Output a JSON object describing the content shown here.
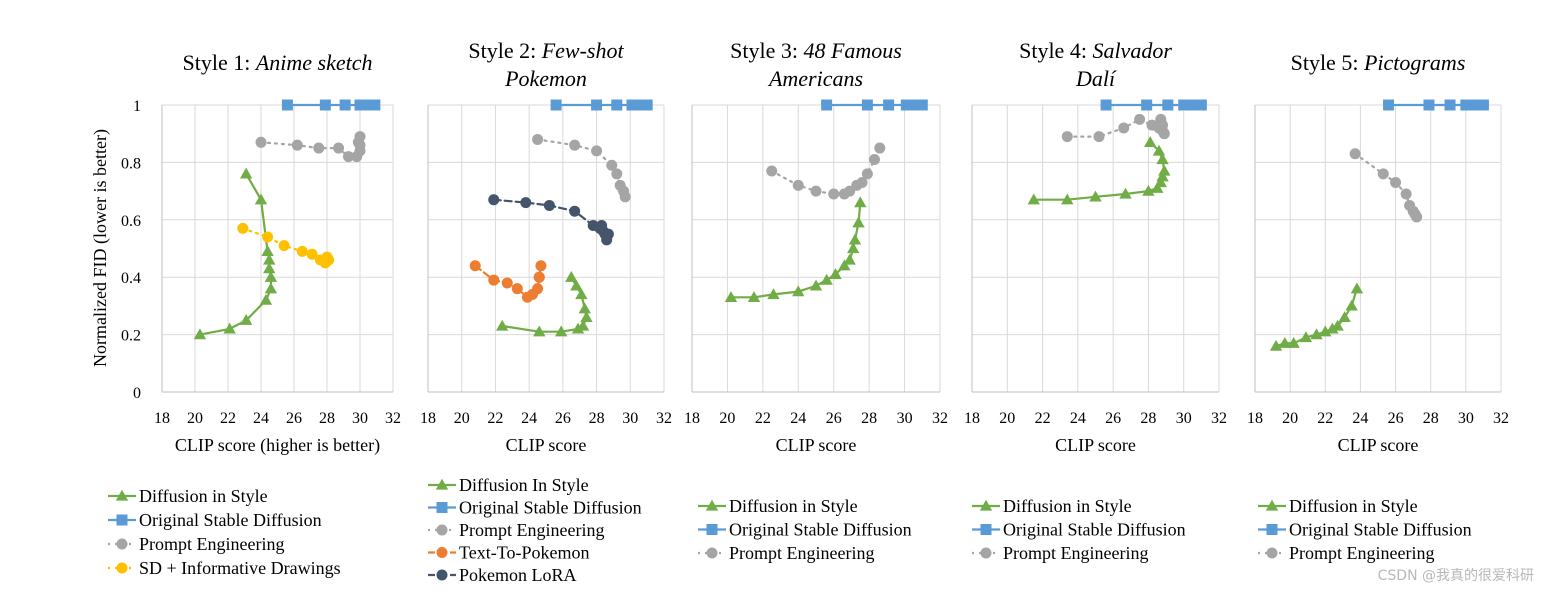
{
  "watermark": "CSDN @我真的很爱科研",
  "y_axis_label": "Normalized FID (lower is better)",
  "chart_data": [
    {
      "type": "line",
      "title_plain": "Style 1: ",
      "title_italic": "Anime sketch",
      "xlabel": "CLIP score (higher is better)",
      "xlim": [
        18,
        32
      ],
      "ylim": [
        0,
        1
      ],
      "xticks": [
        18,
        20,
        22,
        24,
        26,
        28,
        30,
        32
      ],
      "yticks": [
        0,
        0.2,
        0.4,
        0.6,
        0.8,
        1
      ],
      "ytick_labels": [
        "0",
        "0.2",
        "0.4",
        "0.6",
        "0.8",
        "1"
      ],
      "grid": true,
      "legend_position": "bottom",
      "series": [
        {
          "name": "Diffusion in Style",
          "color": "#70ad47",
          "marker": "triangle",
          "dash": "solid",
          "x": [
            20.3,
            22.1,
            23.1,
            24.3,
            24.6,
            24.6,
            24.5,
            24.5,
            24.4,
            24.0,
            23.1
          ],
          "y": [
            0.2,
            0.22,
            0.25,
            0.32,
            0.36,
            0.4,
            0.43,
            0.46,
            0.49,
            0.67,
            0.76
          ]
        },
        {
          "name": "Original Stable Diffusion",
          "color": "#5b9bd5",
          "marker": "square",
          "dash": "solid",
          "x": [
            25.6,
            27.9,
            29.1,
            30.0,
            30.3,
            30.6,
            30.9
          ],
          "y": [
            1,
            1,
            1,
            1,
            1,
            1,
            1
          ]
        },
        {
          "name": "Prompt Engineering",
          "color": "#a5a5a5",
          "marker": "circle",
          "dash": "dot",
          "x": [
            24.0,
            26.2,
            27.5,
            28.7,
            29.3,
            29.8,
            30.0,
            30.0,
            29.9,
            30.0
          ],
          "y": [
            0.87,
            0.86,
            0.85,
            0.85,
            0.82,
            0.82,
            0.84,
            0.86,
            0.87,
            0.89
          ]
        },
        {
          "name": "SD + Informative Drawings",
          "color": "#ffc000",
          "marker": "circle",
          "dash": "dot",
          "x": [
            22.9,
            24.4,
            25.4,
            26.5,
            27.1,
            27.6,
            27.9,
            28.1,
            28.0
          ],
          "y": [
            0.57,
            0.54,
            0.51,
            0.49,
            0.48,
            0.46,
            0.45,
            0.46,
            0.47
          ]
        }
      ]
    },
    {
      "type": "line",
      "title_plain": "Style 2: ",
      "title_italic": "Few-shot",
      "title_line2": "Pokemon",
      "xlabel": "CLIP score",
      "xlim": [
        18,
        32
      ],
      "ylim": [
        0,
        1
      ],
      "xticks": [
        18,
        20,
        22,
        24,
        26,
        28,
        30,
        32
      ],
      "yticks": [
        0,
        0.2,
        0.4,
        0.6,
        0.8,
        1
      ],
      "grid": true,
      "legend_position": "bottom",
      "series": [
        {
          "name": "Diffusion In Style",
          "color": "#70ad47",
          "marker": "triangle",
          "dash": "solid",
          "x": [
            22.4,
            24.6,
            25.9,
            26.9,
            27.2,
            27.4,
            27.3,
            27.1,
            26.8,
            26.5
          ],
          "y": [
            0.23,
            0.21,
            0.21,
            0.22,
            0.23,
            0.26,
            0.29,
            0.34,
            0.37,
            0.4
          ]
        },
        {
          "name": "Original Stable Diffusion",
          "color": "#5b9bd5",
          "marker": "square",
          "dash": "solid",
          "x": [
            25.6,
            28.0,
            29.2,
            30.1,
            30.4,
            30.7,
            31.0
          ],
          "y": [
            1,
            1,
            1,
            1,
            1,
            1,
            1
          ]
        },
        {
          "name": "Prompt Engineering",
          "color": "#a5a5a5",
          "marker": "circle",
          "dash": "dot",
          "x": [
            24.5,
            26.7,
            28.0,
            28.9,
            29.2,
            29.4,
            29.6,
            29.7
          ],
          "y": [
            0.88,
            0.86,
            0.84,
            0.79,
            0.76,
            0.72,
            0.7,
            0.68
          ]
        },
        {
          "name": "Text-To-Pokemon",
          "color": "#ed7d31",
          "marker": "circle",
          "dash": "dash",
          "x": [
            20.8,
            21.9,
            22.7,
            23.3,
            23.9,
            24.2,
            24.5,
            24.6,
            24.7,
            24.6
          ],
          "y": [
            0.44,
            0.39,
            0.38,
            0.36,
            0.33,
            0.34,
            0.36,
            0.4,
            0.44,
            0.4
          ]
        },
        {
          "name": "Pokemon LoRA",
          "color": "#44546a",
          "marker": "circle",
          "dash": "dash",
          "x": [
            21.9,
            23.8,
            25.2,
            26.7,
            27.8,
            28.2,
            28.5,
            28.6,
            28.7,
            28.4,
            28.3
          ],
          "y": [
            0.67,
            0.66,
            0.65,
            0.63,
            0.58,
            0.57,
            0.55,
            0.53,
            0.55,
            0.56,
            0.58
          ]
        }
      ]
    },
    {
      "type": "line",
      "title_plain": "Style 3: ",
      "title_italic": "48 Famous",
      "title_line2": "Americans",
      "xlabel": "CLIP score",
      "xlim": [
        18,
        32
      ],
      "ylim": [
        0,
        1
      ],
      "xticks": [
        18,
        20,
        22,
        24,
        26,
        28,
        30,
        32
      ],
      "yticks": [
        0,
        0.2,
        0.4,
        0.6,
        0.8,
        1
      ],
      "grid": true,
      "legend_position": "bottom",
      "series": [
        {
          "name": "Diffusion in Style",
          "color": "#70ad47",
          "marker": "triangle",
          "dash": "solid",
          "x": [
            20.2,
            21.5,
            22.6,
            24.0,
            25.0,
            25.6,
            26.1,
            26.6,
            26.9,
            27.1,
            27.2,
            27.4,
            27.5
          ],
          "y": [
            0.33,
            0.33,
            0.34,
            0.35,
            0.37,
            0.39,
            0.41,
            0.44,
            0.46,
            0.5,
            0.53,
            0.59,
            0.66
          ]
        },
        {
          "name": "Original Stable Diffusion",
          "color": "#5b9bd5",
          "marker": "square",
          "dash": "solid",
          "x": [
            25.6,
            27.9,
            29.1,
            30.1,
            30.5,
            30.8,
            31.0
          ],
          "y": [
            1,
            1,
            1,
            1,
            1,
            1,
            1
          ]
        },
        {
          "name": "Prompt Engineering",
          "color": "#a5a5a5",
          "marker": "circle",
          "dash": "dot",
          "x": [
            22.5,
            24.0,
            25.0,
            26.0,
            26.6,
            26.9,
            27.3,
            27.6,
            27.9,
            28.3,
            28.6
          ],
          "y": [
            0.77,
            0.72,
            0.7,
            0.69,
            0.69,
            0.7,
            0.72,
            0.73,
            0.76,
            0.81,
            0.85
          ]
        }
      ]
    },
    {
      "type": "line",
      "title_plain": "Style 4: ",
      "title_italic": "Salvador",
      "title_line2": "Dalí",
      "xlabel": "CLIP score",
      "xlim": [
        18,
        32
      ],
      "ylim": [
        0,
        1
      ],
      "xticks": [
        18,
        20,
        22,
        24,
        26,
        28,
        30,
        32
      ],
      "yticks": [
        0,
        0.2,
        0.4,
        0.6,
        0.8,
        1
      ],
      "grid": true,
      "legend_position": "bottom",
      "series": [
        {
          "name": "Diffusion in Style",
          "color": "#70ad47",
          "marker": "triangle",
          "dash": "solid",
          "x": [
            21.5,
            23.4,
            25.0,
            26.7,
            28.0,
            28.5,
            28.7,
            28.8,
            28.9,
            28.8,
            28.6,
            28.1
          ],
          "y": [
            0.67,
            0.67,
            0.68,
            0.69,
            0.7,
            0.71,
            0.73,
            0.75,
            0.77,
            0.81,
            0.84,
            0.87
          ]
        },
        {
          "name": "Original Stable Diffusion",
          "color": "#5b9bd5",
          "marker": "square",
          "dash": "solid",
          "x": [
            25.6,
            27.9,
            29.1,
            30.0,
            30.4,
            30.7,
            31.0
          ],
          "y": [
            1,
            1,
            1,
            1,
            1,
            1,
            1
          ]
        },
        {
          "name": "Prompt Engineering",
          "color": "#a5a5a5",
          "marker": "circle",
          "dash": "dot",
          "x": [
            23.4,
            25.2,
            26.6,
            27.5,
            28.2,
            28.6,
            28.8,
            28.9,
            28.8,
            28.7
          ],
          "y": [
            0.89,
            0.89,
            0.92,
            0.95,
            0.93,
            0.92,
            0.91,
            0.9,
            0.93,
            0.95
          ]
        }
      ]
    },
    {
      "type": "line",
      "title_plain": "Style 5: ",
      "title_italic": "Pictograms",
      "xlabel": "CLIP score",
      "xlim": [
        18,
        32
      ],
      "ylim": [
        0,
        1
      ],
      "xticks": [
        18,
        20,
        22,
        24,
        26,
        28,
        30,
        32
      ],
      "yticks": [
        0,
        0.2,
        0.4,
        0.6,
        0.8,
        1
      ],
      "grid": true,
      "legend_position": "bottom",
      "series": [
        {
          "name": "Diffusion in Style",
          "color": "#70ad47",
          "marker": "triangle",
          "dash": "solid",
          "x": [
            19.2,
            19.7,
            20.2,
            20.9,
            21.5,
            22.0,
            22.4,
            22.7,
            23.1,
            23.5,
            23.8
          ],
          "y": [
            0.16,
            0.17,
            0.17,
            0.19,
            0.2,
            0.21,
            0.22,
            0.23,
            0.26,
            0.3,
            0.36
          ]
        },
        {
          "name": "Original Stable Diffusion",
          "color": "#5b9bd5",
          "marker": "square",
          "dash": "solid",
          "x": [
            25.6,
            27.9,
            29.1,
            30.0,
            30.4,
            30.7,
            31.0
          ],
          "y": [
            1,
            1,
            1,
            1,
            1,
            1,
            1
          ]
        },
        {
          "name": "Prompt Engineering",
          "color": "#a5a5a5",
          "marker": "circle",
          "dash": "dot",
          "x": [
            23.7,
            25.3,
            26.0,
            26.6,
            26.8,
            27.0,
            27.1,
            27.2,
            27.1
          ],
          "y": [
            0.83,
            0.76,
            0.73,
            0.69,
            0.65,
            0.63,
            0.62,
            0.61,
            0.62
          ]
        }
      ]
    }
  ]
}
